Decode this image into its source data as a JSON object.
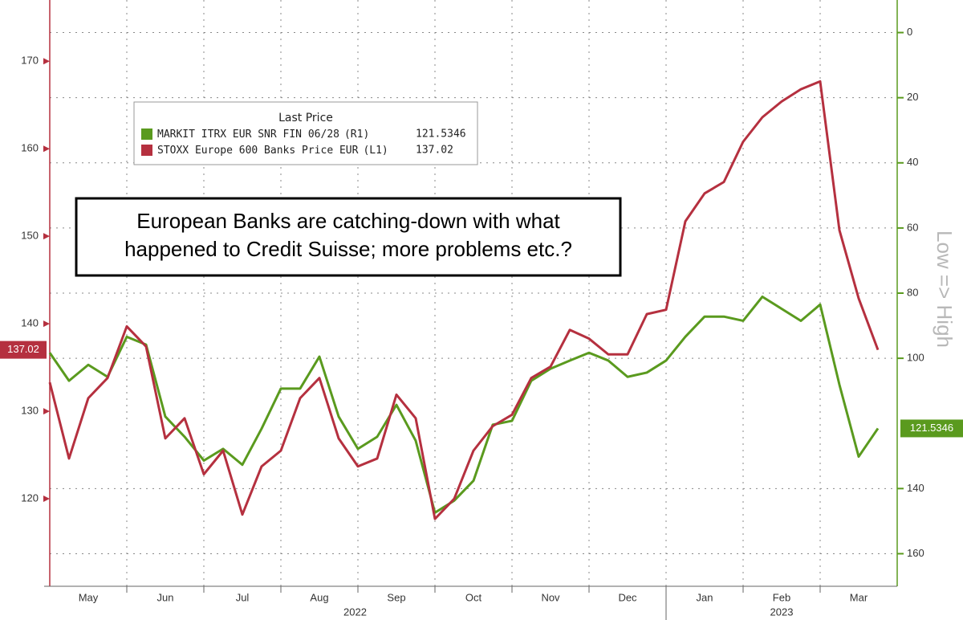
{
  "chart_data": {
    "type": "line",
    "annotation": [
      "European Banks are catching-down with what",
      "happened to Credit Suisse; more problems etc.?"
    ],
    "legend_title": "Last Price",
    "y2_label": "Low => High",
    "categories": [
      null,
      null,
      "May",
      null,
      null,
      null,
      "Jun",
      null,
      null,
      null,
      "Jul",
      null,
      null,
      null,
      "Aug",
      null,
      null,
      null,
      "Sep",
      null,
      null,
      null,
      "Oct",
      null,
      null,
      null,
      "Nov",
      null,
      null,
      null,
      "Dec",
      null,
      null,
      null,
      "Jan",
      null,
      null,
      null,
      "Feb",
      null,
      null,
      null,
      "Mar",
      null
    ],
    "years": [
      "2022",
      "2023"
    ],
    "ylim": [
      110,
      177
    ],
    "yticks": [
      120,
      130,
      140,
      150,
      160,
      170
    ],
    "y2lim": [
      -10,
      170
    ],
    "y2_inverted": true,
    "y2ticks": [
      0,
      20,
      40,
      60,
      80,
      100,
      140,
      160
    ],
    "grid": true,
    "series": [
      {
        "name": "MARKIT ITRX EUR SNR FIN 06/28",
        "axis_tag": "(R1)",
        "last_price": 121.5346,
        "axis": "y2",
        "color": "#5a9a1e",
        "values": [
          98.3,
          106.9,
          102,
          105.7,
          93.4,
          95.8,
          117.9,
          124.1,
          131.4,
          127.8,
          132.7,
          121.6,
          109.3,
          109.3,
          99.5,
          117.9,
          127.8,
          124.1,
          114.3,
          125.3,
          147.4,
          143.7,
          137.6,
          120.4,
          119.2,
          106.9,
          103.2,
          100.7,
          98.3,
          100.7,
          105.7,
          104.4,
          100.7,
          93.4,
          87.2,
          87.2,
          88.5,
          81.1,
          84.8,
          88.5,
          83.5,
          108.1,
          130.2,
          121.5346
        ]
      },
      {
        "name": "STOXX Europe 600 Banks Price EUR",
        "axis_tag": "(L1)",
        "last_price": 137.02,
        "axis": "y",
        "color": "#b5303f",
        "values": [
          133.3,
          124.6,
          131.5,
          133.8,
          139.7,
          137.4,
          126.9,
          129.2,
          122.8,
          125.5,
          118.2,
          123.7,
          125.5,
          131.5,
          133.8,
          126.9,
          123.7,
          124.6,
          131.9,
          129.2,
          117.7,
          120,
          125.5,
          128.3,
          129.6,
          133.8,
          135.1,
          139.3,
          138.3,
          136.5,
          136.5,
          141.1,
          141.6,
          151.7,
          154.9,
          156.2,
          160.8,
          163.6,
          165.4,
          166.8,
          167.7,
          150.7,
          142.9,
          137.02
        ]
      }
    ]
  }
}
